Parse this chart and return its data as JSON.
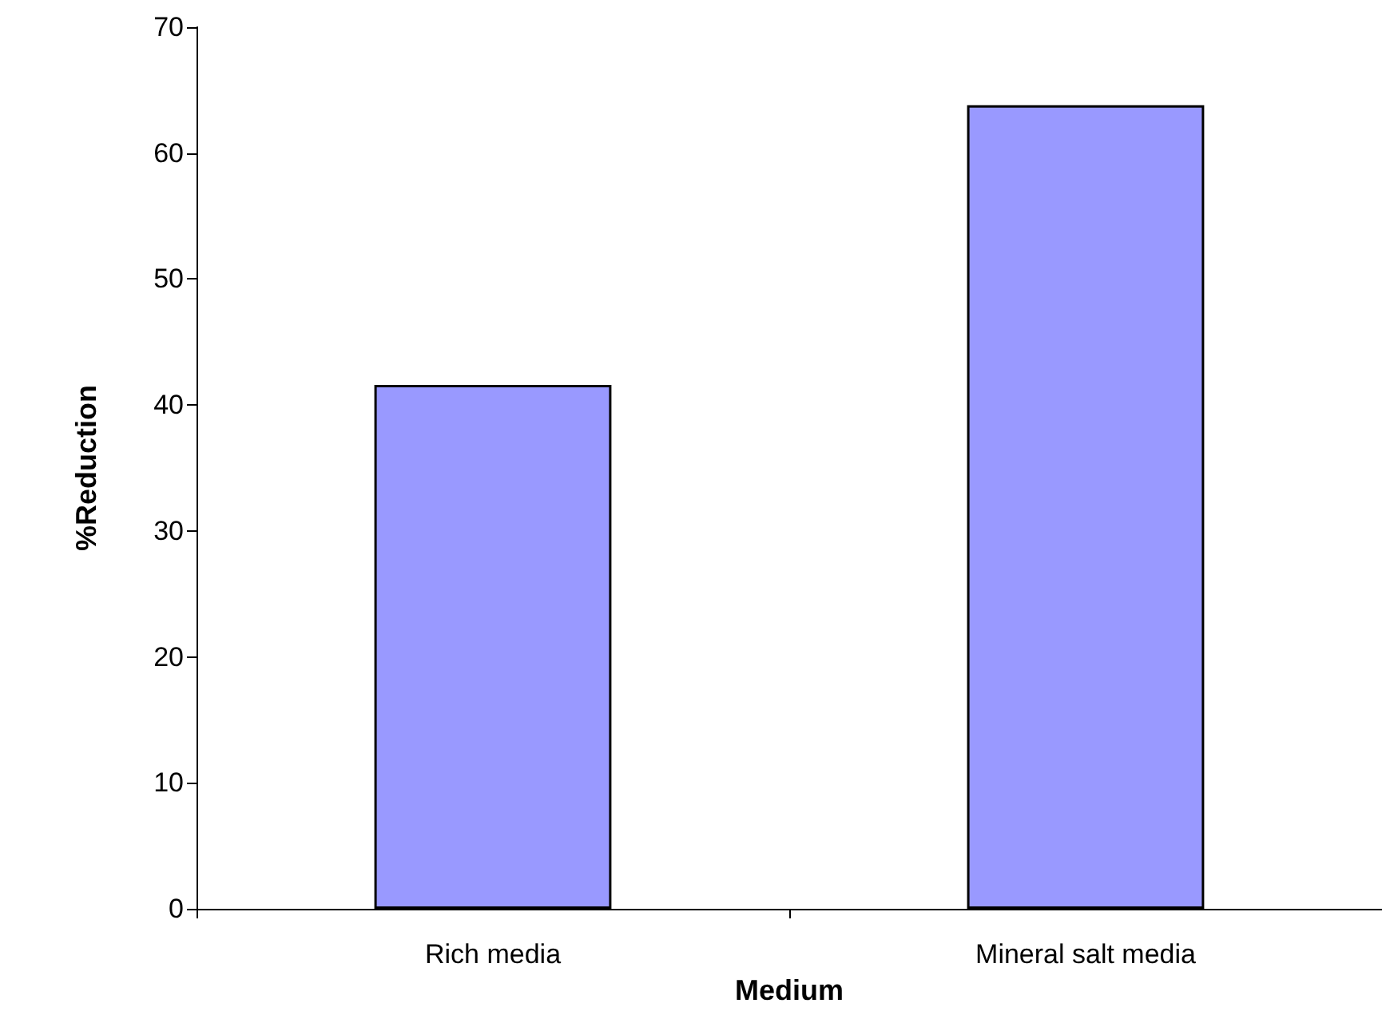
{
  "chart_data": {
    "type": "bar",
    "xlabel": "Medium",
    "ylabel": "%Reduction",
    "categories": [
      "Rich media",
      "Mineral salt media"
    ],
    "values": [
      41.6,
      63.8
    ],
    "color": "#9999ff",
    "ylim": [
      0,
      70
    ],
    "yticks": [
      0,
      10,
      20,
      30,
      40,
      50,
      60,
      70
    ],
    "grid": false
  }
}
